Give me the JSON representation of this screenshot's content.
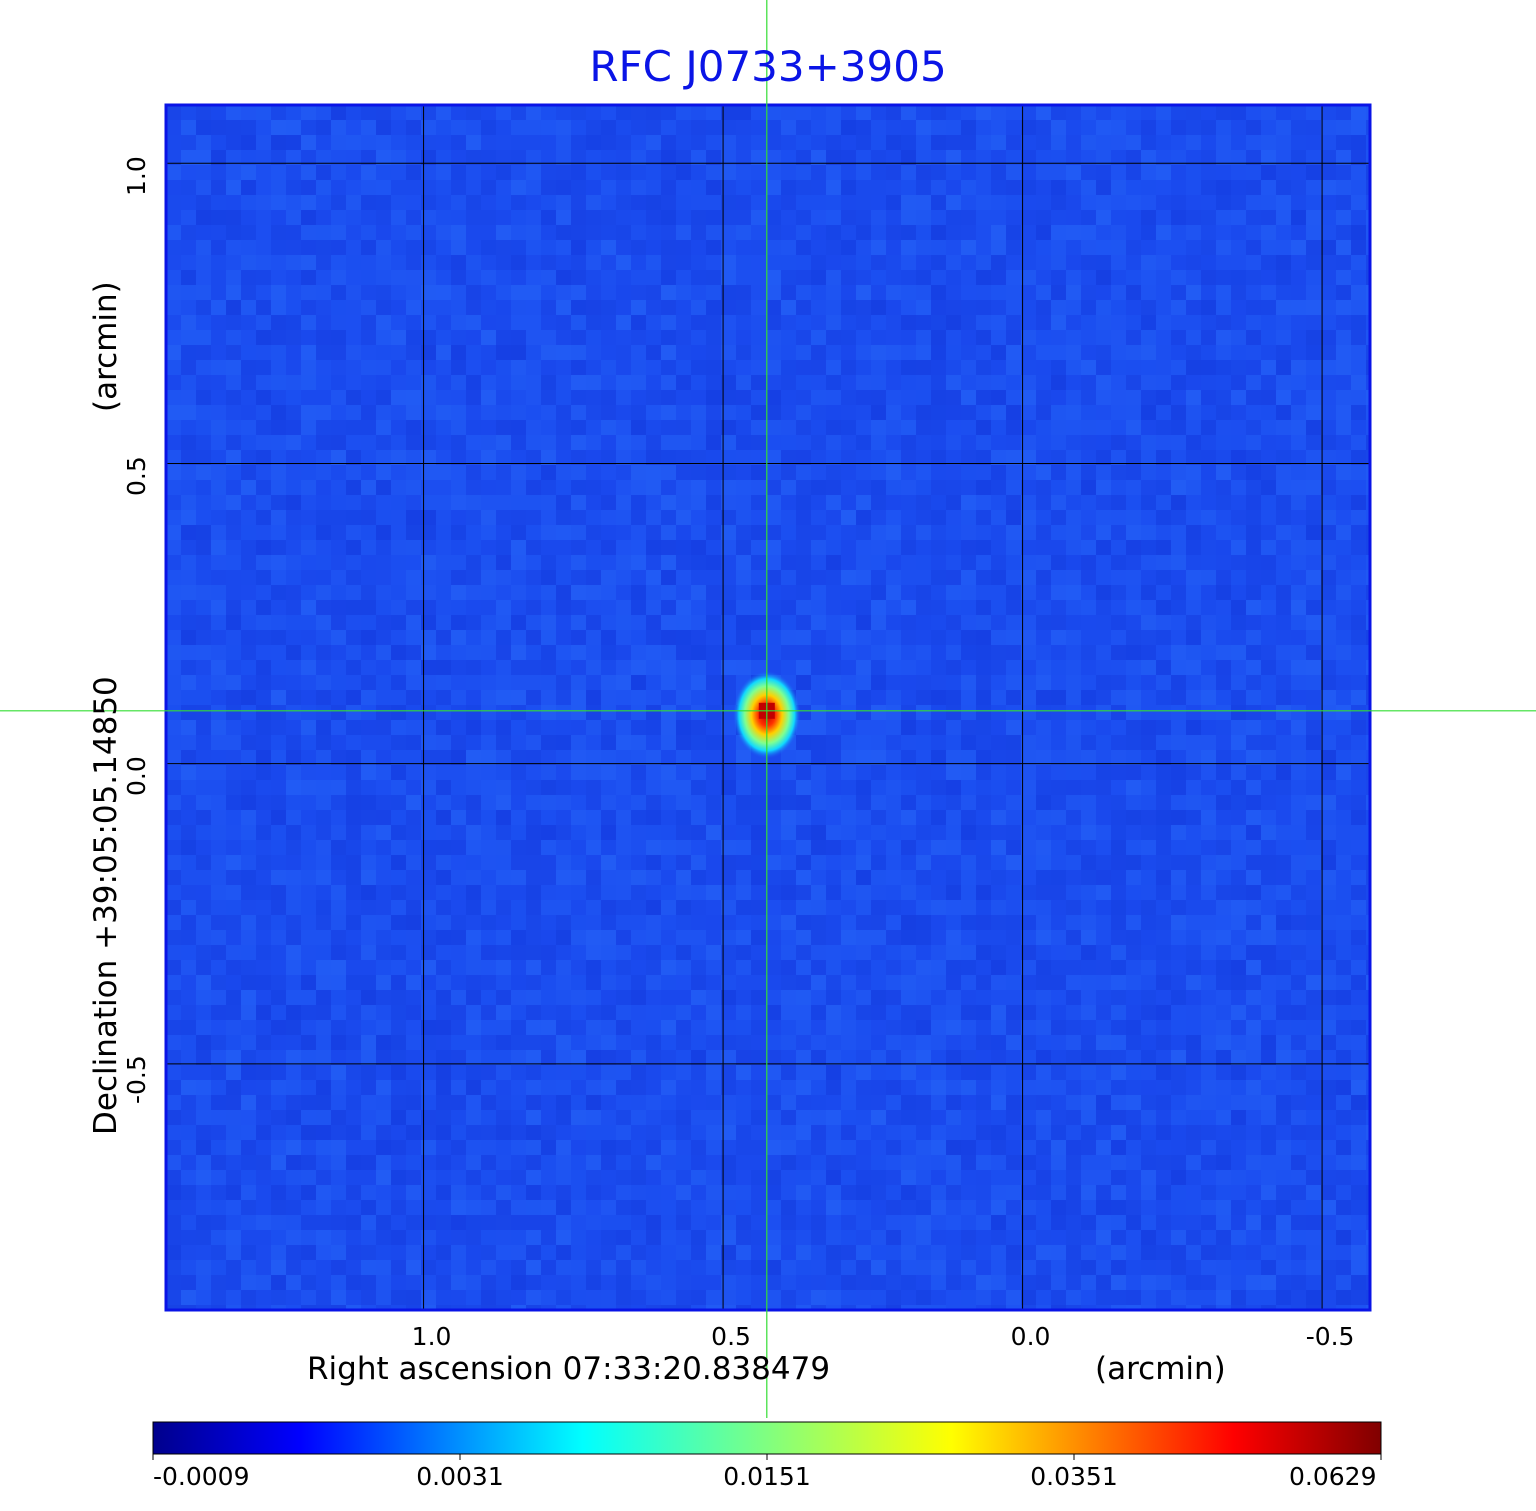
{
  "chart_data": {
    "type": "heatmap",
    "title": "RFC J0733+3905",
    "xlabel": "Right ascension  07:33:20.838479",
    "xunit": "(arcmin)",
    "ylabel": "Declination  +39:05:05.14850",
    "yunit": "(arcmin)",
    "x_ticks": [
      1.0,
      0.5,
      0.0,
      -0.5
    ],
    "x_tick_labels": [
      "1.0",
      "0.5",
      "0.0",
      "-0.5"
    ],
    "y_ticks": [
      1.0,
      0.5,
      0.0,
      -0.5
    ],
    "y_tick_labels": [
      "1.0",
      "0.5",
      "0.0",
      "-0.5"
    ],
    "xlim": [
      1.43,
      -0.58
    ],
    "ylim": [
      -0.91,
      1.097
    ],
    "grid": true,
    "crosshair": {
      "x": 0.427,
      "y": 0.088,
      "color": "#33dd33"
    },
    "source_peak": {
      "x": 0.427,
      "y": 0.088,
      "value": 0.0629
    },
    "colorbar": {
      "colormap": "jet",
      "tick_labels": [
        "-0.0009",
        "0.0031",
        "0.0151",
        "0.0351",
        "0.0629"
      ],
      "min": -0.0009,
      "max": 0.0629
    },
    "background_color": "#1c4ff0",
    "frame_color": "#0a14e6"
  }
}
